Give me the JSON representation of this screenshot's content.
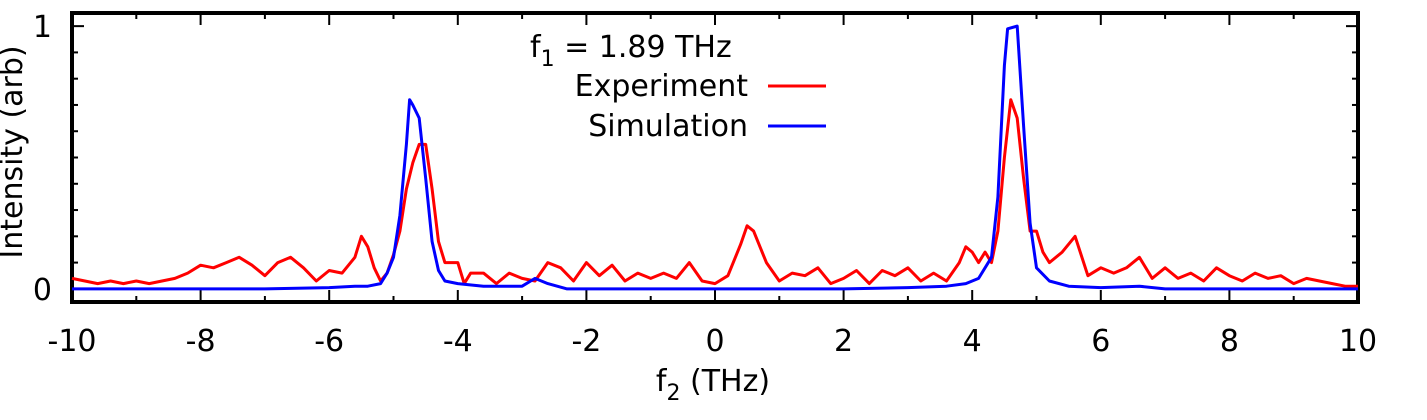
{
  "chart_data": {
    "type": "line",
    "title": "",
    "annotation": {
      "base": "f",
      "sub": "1",
      "rest": " = 1.89 THz"
    },
    "xlabel": {
      "base": "f",
      "sub": "2",
      "rest": " (THz)"
    },
    "ylabel": "Intensity (arb)",
    "xlim": [
      -10,
      10
    ],
    "ylim": [
      -0.05,
      1.05
    ],
    "x_ticks": [
      -10,
      -8,
      -6,
      -4,
      -2,
      0,
      2,
      4,
      6,
      8,
      10
    ],
    "y_ticks": [
      0,
      1
    ],
    "grid": false,
    "legend_position": "top-center",
    "series": [
      {
        "name": "Experiment",
        "color": "#ff0000",
        "points": [
          [
            -10.0,
            0.04
          ],
          [
            -9.8,
            0.03
          ],
          [
            -9.6,
            0.02
          ],
          [
            -9.4,
            0.03
          ],
          [
            -9.2,
            0.02
          ],
          [
            -9.0,
            0.03
          ],
          [
            -8.8,
            0.02
          ],
          [
            -8.6,
            0.03
          ],
          [
            -8.4,
            0.04
          ],
          [
            -8.2,
            0.06
          ],
          [
            -8.0,
            0.09
          ],
          [
            -7.8,
            0.08
          ],
          [
            -7.6,
            0.1
          ],
          [
            -7.4,
            0.12
          ],
          [
            -7.2,
            0.09
          ],
          [
            -7.0,
            0.05
          ],
          [
            -6.8,
            0.1
          ],
          [
            -6.6,
            0.12
          ],
          [
            -6.4,
            0.08
          ],
          [
            -6.2,
            0.03
          ],
          [
            -6.0,
            0.07
          ],
          [
            -5.8,
            0.06
          ],
          [
            -5.6,
            0.12
          ],
          [
            -5.5,
            0.2
          ],
          [
            -5.4,
            0.16
          ],
          [
            -5.3,
            0.08
          ],
          [
            -5.2,
            0.03
          ],
          [
            -5.1,
            0.06
          ],
          [
            -5.0,
            0.13
          ],
          [
            -4.9,
            0.22
          ],
          [
            -4.8,
            0.38
          ],
          [
            -4.7,
            0.48
          ],
          [
            -4.6,
            0.55
          ],
          [
            -4.5,
            0.55
          ],
          [
            -4.4,
            0.38
          ],
          [
            -4.3,
            0.18
          ],
          [
            -4.2,
            0.1
          ],
          [
            -4.0,
            0.1
          ],
          [
            -3.9,
            0.02
          ],
          [
            -3.8,
            0.06
          ],
          [
            -3.6,
            0.06
          ],
          [
            -3.4,
            0.02
          ],
          [
            -3.2,
            0.06
          ],
          [
            -3.0,
            0.04
          ],
          [
            -2.8,
            0.03
          ],
          [
            -2.6,
            0.1
          ],
          [
            -2.4,
            0.08
          ],
          [
            -2.2,
            0.03
          ],
          [
            -2.0,
            0.1
          ],
          [
            -1.8,
            0.05
          ],
          [
            -1.6,
            0.09
          ],
          [
            -1.4,
            0.03
          ],
          [
            -1.2,
            0.06
          ],
          [
            -1.0,
            0.04
          ],
          [
            -0.8,
            0.06
          ],
          [
            -0.6,
            0.04
          ],
          [
            -0.4,
            0.1
          ],
          [
            -0.2,
            0.03
          ],
          [
            0.0,
            0.02
          ],
          [
            0.2,
            0.05
          ],
          [
            0.4,
            0.17
          ],
          [
            0.5,
            0.24
          ],
          [
            0.6,
            0.22
          ],
          [
            0.8,
            0.1
          ],
          [
            1.0,
            0.03
          ],
          [
            1.2,
            0.06
          ],
          [
            1.4,
            0.05
          ],
          [
            1.6,
            0.08
          ],
          [
            1.8,
            0.02
          ],
          [
            2.0,
            0.04
          ],
          [
            2.2,
            0.07
          ],
          [
            2.4,
            0.02
          ],
          [
            2.6,
            0.07
          ],
          [
            2.8,
            0.05
          ],
          [
            3.0,
            0.08
          ],
          [
            3.2,
            0.03
          ],
          [
            3.4,
            0.06
          ],
          [
            3.6,
            0.03
          ],
          [
            3.8,
            0.1
          ],
          [
            3.9,
            0.16
          ],
          [
            4.0,
            0.14
          ],
          [
            4.1,
            0.1
          ],
          [
            4.2,
            0.14
          ],
          [
            4.3,
            0.1
          ],
          [
            4.4,
            0.22
          ],
          [
            4.5,
            0.5
          ],
          [
            4.6,
            0.72
          ],
          [
            4.7,
            0.65
          ],
          [
            4.8,
            0.42
          ],
          [
            4.9,
            0.22
          ],
          [
            5.0,
            0.22
          ],
          [
            5.1,
            0.14
          ],
          [
            5.2,
            0.1
          ],
          [
            5.4,
            0.14
          ],
          [
            5.6,
            0.2
          ],
          [
            5.8,
            0.05
          ],
          [
            6.0,
            0.08
          ],
          [
            6.2,
            0.06
          ],
          [
            6.4,
            0.08
          ],
          [
            6.6,
            0.12
          ],
          [
            6.8,
            0.04
          ],
          [
            7.0,
            0.08
          ],
          [
            7.2,
            0.04
          ],
          [
            7.4,
            0.06
          ],
          [
            7.6,
            0.03
          ],
          [
            7.8,
            0.08
          ],
          [
            8.0,
            0.05
          ],
          [
            8.2,
            0.03
          ],
          [
            8.4,
            0.06
          ],
          [
            8.6,
            0.04
          ],
          [
            8.8,
            0.05
          ],
          [
            9.0,
            0.02
          ],
          [
            9.2,
            0.04
          ],
          [
            9.4,
            0.03
          ],
          [
            9.6,
            0.02
          ],
          [
            9.8,
            0.01
          ],
          [
            10.0,
            0.01
          ]
        ]
      },
      {
        "name": "Simulation",
        "color": "#0000ff",
        "points": [
          [
            -10.0,
            0.0
          ],
          [
            -9.0,
            0.0
          ],
          [
            -8.0,
            0.0
          ],
          [
            -7.0,
            0.0
          ],
          [
            -6.0,
            0.005
          ],
          [
            -5.6,
            0.01
          ],
          [
            -5.4,
            0.01
          ],
          [
            -5.2,
            0.02
          ],
          [
            -5.1,
            0.06
          ],
          [
            -5.0,
            0.12
          ],
          [
            -4.9,
            0.28
          ],
          [
            -4.8,
            0.55
          ],
          [
            -4.75,
            0.72
          ],
          [
            -4.7,
            0.7
          ],
          [
            -4.6,
            0.65
          ],
          [
            -4.5,
            0.42
          ],
          [
            -4.4,
            0.18
          ],
          [
            -4.3,
            0.07
          ],
          [
            -4.2,
            0.03
          ],
          [
            -4.0,
            0.02
          ],
          [
            -3.6,
            0.01
          ],
          [
            -3.0,
            0.01
          ],
          [
            -2.8,
            0.04
          ],
          [
            -2.6,
            0.02
          ],
          [
            -2.3,
            0.0
          ],
          [
            -1.5,
            0.0
          ],
          [
            0.0,
            0.0
          ],
          [
            1.0,
            0.0
          ],
          [
            2.0,
            0.0
          ],
          [
            3.0,
            0.005
          ],
          [
            3.6,
            0.01
          ],
          [
            3.9,
            0.02
          ],
          [
            4.1,
            0.04
          ],
          [
            4.3,
            0.12
          ],
          [
            4.4,
            0.35
          ],
          [
            4.5,
            0.85
          ],
          [
            4.55,
            0.99
          ],
          [
            4.7,
            1.0
          ],
          [
            4.8,
            0.62
          ],
          [
            4.9,
            0.25
          ],
          [
            5.0,
            0.08
          ],
          [
            5.2,
            0.03
          ],
          [
            5.5,
            0.01
          ],
          [
            6.0,
            0.005
          ],
          [
            6.6,
            0.01
          ],
          [
            7.0,
            0.0
          ],
          [
            8.0,
            0.0
          ],
          [
            9.0,
            0.0
          ],
          [
            10.0,
            0.0
          ]
        ]
      }
    ]
  }
}
